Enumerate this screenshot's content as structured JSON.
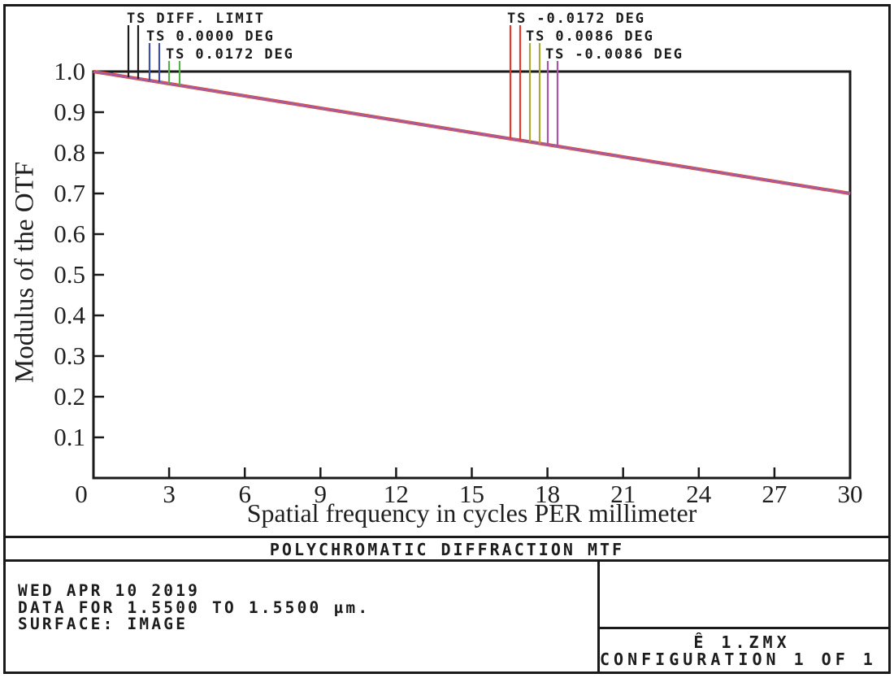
{
  "chart_data": {
    "type": "line",
    "title": "POLYCHROMATIC DIFFRACTION MTF",
    "xlabel": "Spatial frequency in cycles PER millimeter",
    "ylabel": "Modulus of the OTF",
    "xlim": [
      0,
      30
    ],
    "ylim": [
      0,
      1.0
    ],
    "grid": false,
    "legend_position": "top",
    "xtick_labels": [
      "0",
      "3",
      "6",
      "9",
      "12",
      "15",
      "18",
      "21",
      "24",
      "27",
      "30"
    ],
    "ytick_labels": [
      "1.0",
      "0.9",
      "0.8",
      "0.7",
      "0.6",
      "0.5",
      "0.4",
      "0.3",
      "0.2",
      "0.1"
    ],
    "series": [
      {
        "name": "TS DIFF. LIMIT",
        "color": "#1b1b1b",
        "points": [
          [
            0,
            1.0
          ],
          [
            30,
            0.7
          ]
        ]
      },
      {
        "name": "TS 0.0000 DEG",
        "color": "#3f51a5",
        "points": [
          [
            0,
            1.0
          ],
          [
            30,
            0.7
          ]
        ]
      },
      {
        "name": "TS 0.0172 DEG",
        "color": "#55b24b",
        "points": [
          [
            0,
            1.0
          ],
          [
            30,
            0.7
          ]
        ]
      },
      {
        "name": "TS -0.0172 DEG",
        "color": "#e53a2c",
        "points": [
          [
            0,
            1.0
          ],
          [
            30,
            0.7
          ]
        ]
      },
      {
        "name": "TS 0.0086 DEG",
        "color": "#aaa93c",
        "points": [
          [
            0,
            1.0
          ],
          [
            30,
            0.7
          ]
        ]
      },
      {
        "name": "TS -0.0086 DEG",
        "color": "#a757a6",
        "points": [
          [
            0,
            1.0
          ],
          [
            30,
            0.7
          ]
        ]
      }
    ]
  },
  "legend": {
    "left": [
      {
        "label": "TS DIFF. LIMIT",
        "color": "#1b1b1b"
      },
      {
        "label": "TS 0.0000 DEG",
        "color": "#3f51a5"
      },
      {
        "label": "TS 0.0172 DEG",
        "color": "#55b24b"
      }
    ],
    "right": [
      {
        "label": "TS -0.0172 DEG",
        "color": "#e53a2c"
      },
      {
        "label": "TS 0.0086 DEG",
        "color": "#aaa93c"
      },
      {
        "label": "TS -0.0086 DEG",
        "color": "#a757a6"
      }
    ]
  },
  "footer": {
    "date": "WED APR 10 2019",
    "data_range": "DATA FOR 1.5500 TO 1.5500 µm.",
    "surface": "SURFACE: IMAGE",
    "file": "Ê 1.ZMX",
    "configuration": "CONFIGURATION 1 OF 1"
  }
}
